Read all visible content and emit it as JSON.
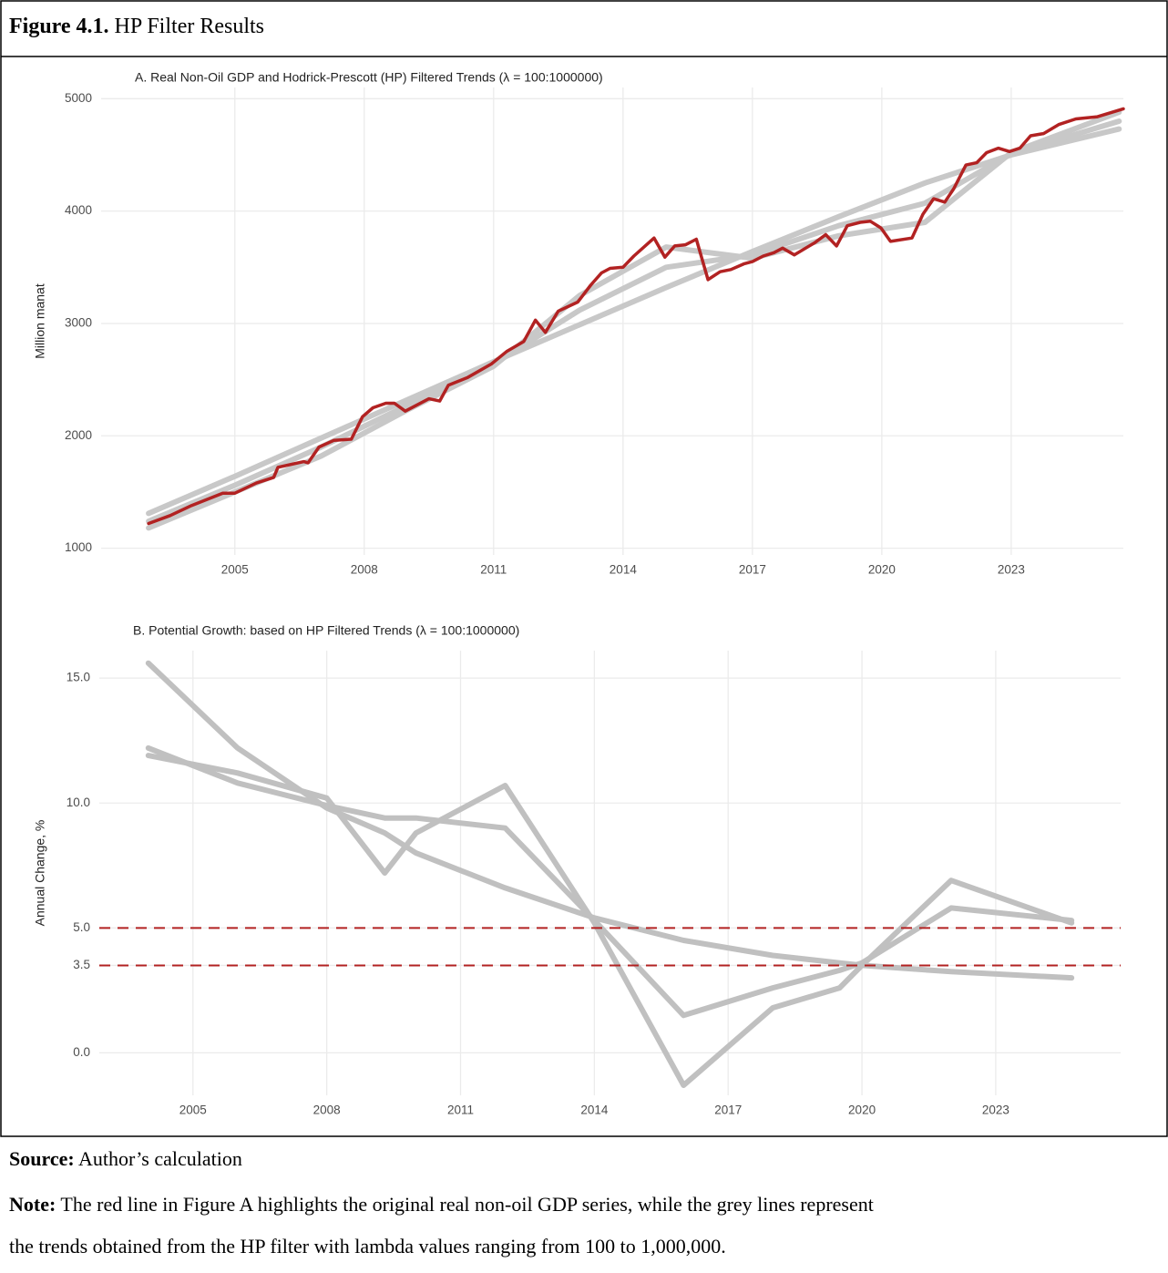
{
  "header": {
    "label": "Figure 4.1.",
    "title": "HP Filter Results"
  },
  "footer": {
    "source_label": "Source:",
    "source": "Author’s calculation",
    "note_label": "Note:",
    "note_lines": [
      "The red line in Figure A highlights the original real non-oil GDP series, while the grey lines represent",
      "the trends obtained from the HP filter with lambda values ranging from 100 to 1,000,000."
    ]
  },
  "chart_data": [
    {
      "type": "line",
      "title": "A. Real Non-Oil GDP and Hodrick-Prescott (HP) Filtered Trends (λ = 100:1000000)",
      "ylabel": "Million manat",
      "grid": true,
      "xlim": [
        2001.9,
        2025.6
      ],
      "xticks": [
        2005,
        2008,
        2011,
        2014,
        2017,
        2020,
        2023
      ],
      "ylim": [
        940,
        5100
      ],
      "yticks": [
        1000,
        2000,
        3000,
        4000,
        5000
      ],
      "series": [
        {
          "color": "#c8c8c8",
          "x": [
            2003,
            2005,
            2007,
            2009,
            2011,
            2013,
            2015,
            2017,
            2019,
            2021,
            2023,
            2025.5
          ],
          "values": [
            1310,
            1640,
            1980,
            2320,
            2660,
            2990,
            3320,
            3640,
            3950,
            4250,
            4500,
            4730
          ]
        },
        {
          "color": "#c8c8c8",
          "x": [
            2003,
            2005,
            2007,
            2009,
            2011,
            2013,
            2015,
            2017,
            2019,
            2021,
            2023,
            2025.5
          ],
          "values": [
            1240,
            1560,
            1900,
            2270,
            2640,
            3120,
            3500,
            3610,
            3870,
            4070,
            4510,
            4800
          ]
        },
        {
          "color": "#c8c8c8",
          "x": [
            2003,
            2005,
            2007,
            2009,
            2011,
            2013,
            2015,
            2017,
            2019,
            2021,
            2023,
            2025.5
          ],
          "values": [
            1180,
            1500,
            1820,
            2230,
            2620,
            3250,
            3680,
            3580,
            3780,
            3900,
            4520,
            4880
          ]
        },
        {
          "color": "#b22222",
          "x": [
            2003.0,
            2003.5,
            2004.0,
            2004.72,
            2005.0,
            2005.5,
            2005.9,
            2006.0,
            2006.6,
            2006.7,
            2006.95,
            2007.3,
            2007.7,
            2007.96,
            2008.2,
            2008.5,
            2008.7,
            2008.95,
            2009.5,
            2009.75,
            2009.95,
            2010.4,
            2010.95,
            2011.3,
            2011.7,
            2011.97,
            2012.2,
            2012.5,
            2012.95,
            2013.25,
            2013.5,
            2013.7,
            2014.0,
            2014.25,
            2014.72,
            2014.97,
            2015.2,
            2015.45,
            2015.7,
            2015.97,
            2016.25,
            2016.5,
            2016.8,
            2017.0,
            2017.25,
            2017.5,
            2017.7,
            2017.97,
            2018.45,
            2018.7,
            2018.95,
            2019.2,
            2019.5,
            2019.73,
            2019.98,
            2020.2,
            2020.7,
            2020.95,
            2021.2,
            2021.46,
            2021.67,
            2021.95,
            2022.2,
            2022.43,
            2022.7,
            2022.96,
            2023.2,
            2023.45,
            2023.75,
            2024.1,
            2024.5,
            2025.0,
            2025.6
          ],
          "values": [
            1220,
            1290,
            1380,
            1490,
            1490,
            1580,
            1630,
            1720,
            1770,
            1760,
            1900,
            1960,
            1970,
            2170,
            2250,
            2290,
            2290,
            2220,
            2330,
            2310,
            2450,
            2520,
            2640,
            2750,
            2840,
            3030,
            2920,
            3110,
            3190,
            3340,
            3450,
            3490,
            3500,
            3600,
            3760,
            3590,
            3690,
            3700,
            3750,
            3390,
            3460,
            3480,
            3530,
            3550,
            3600,
            3630,
            3670,
            3610,
            3720,
            3790,
            3690,
            3870,
            3900,
            3910,
            3850,
            3730,
            3760,
            3970,
            4110,
            4080,
            4200,
            4410,
            4430,
            4520,
            4560,
            4530,
            4560,
            4670,
            4690,
            4770,
            4820,
            4840,
            4910
          ]
        }
      ]
    },
    {
      "type": "line",
      "title": "B. Potential Growth: based on HP Filtered Trends (λ = 100:1000000)",
      "ylabel": "Annual Change, %",
      "grid": true,
      "xlim": [
        2002.9,
        2025.8
      ],
      "xticks": [
        2005,
        2008,
        2011,
        2014,
        2017,
        2020,
        2023
      ],
      "ylim": [
        -1.7,
        16.1
      ],
      "yticks": [
        {
          "value": 0,
          "label": "0.0"
        },
        3.5,
        {
          "value": 5,
          "label": "5.0"
        },
        {
          "value": 10,
          "label": "10.0"
        },
        {
          "value": 15,
          "label": "15.0"
        }
      ],
      "hlines": [
        5,
        3.5
      ],
      "hline_color": "#b22222",
      "series": [
        {
          "color": "#c0c0c0",
          "x": [
            2004,
            2006,
            2008,
            2009.3,
            2010,
            2012,
            2014,
            2016,
            2018,
            2019.5,
            2020,
            2022,
            2024.7
          ],
          "values": [
            15.6,
            12.2,
            9.8,
            8.8,
            8.0,
            6.6,
            5.4,
            4.5,
            3.9,
            3.6,
            3.5,
            3.25,
            3.0
          ]
        },
        {
          "color": "#c0c0c0",
          "x": [
            2004,
            2006,
            2008,
            2009.3,
            2010,
            2012,
            2014,
            2016,
            2018,
            2019.5,
            2020,
            2022,
            2024.7
          ],
          "values": [
            12.2,
            10.8,
            9.9,
            9.4,
            9.4,
            9.0,
            5.3,
            1.5,
            2.6,
            3.3,
            3.6,
            5.8,
            5.3
          ]
        },
        {
          "color": "#c0c0c0",
          "x": [
            2004,
            2006,
            2008,
            2009.3,
            2010,
            2012,
            2014,
            2016,
            2018,
            2019.5,
            2020,
            2022,
            2024.7
          ],
          "values": [
            11.9,
            11.2,
            10.2,
            7.2,
            8.8,
            10.7,
            5.2,
            -1.3,
            1.8,
            2.6,
            3.5,
            6.9,
            5.2
          ]
        }
      ]
    }
  ]
}
